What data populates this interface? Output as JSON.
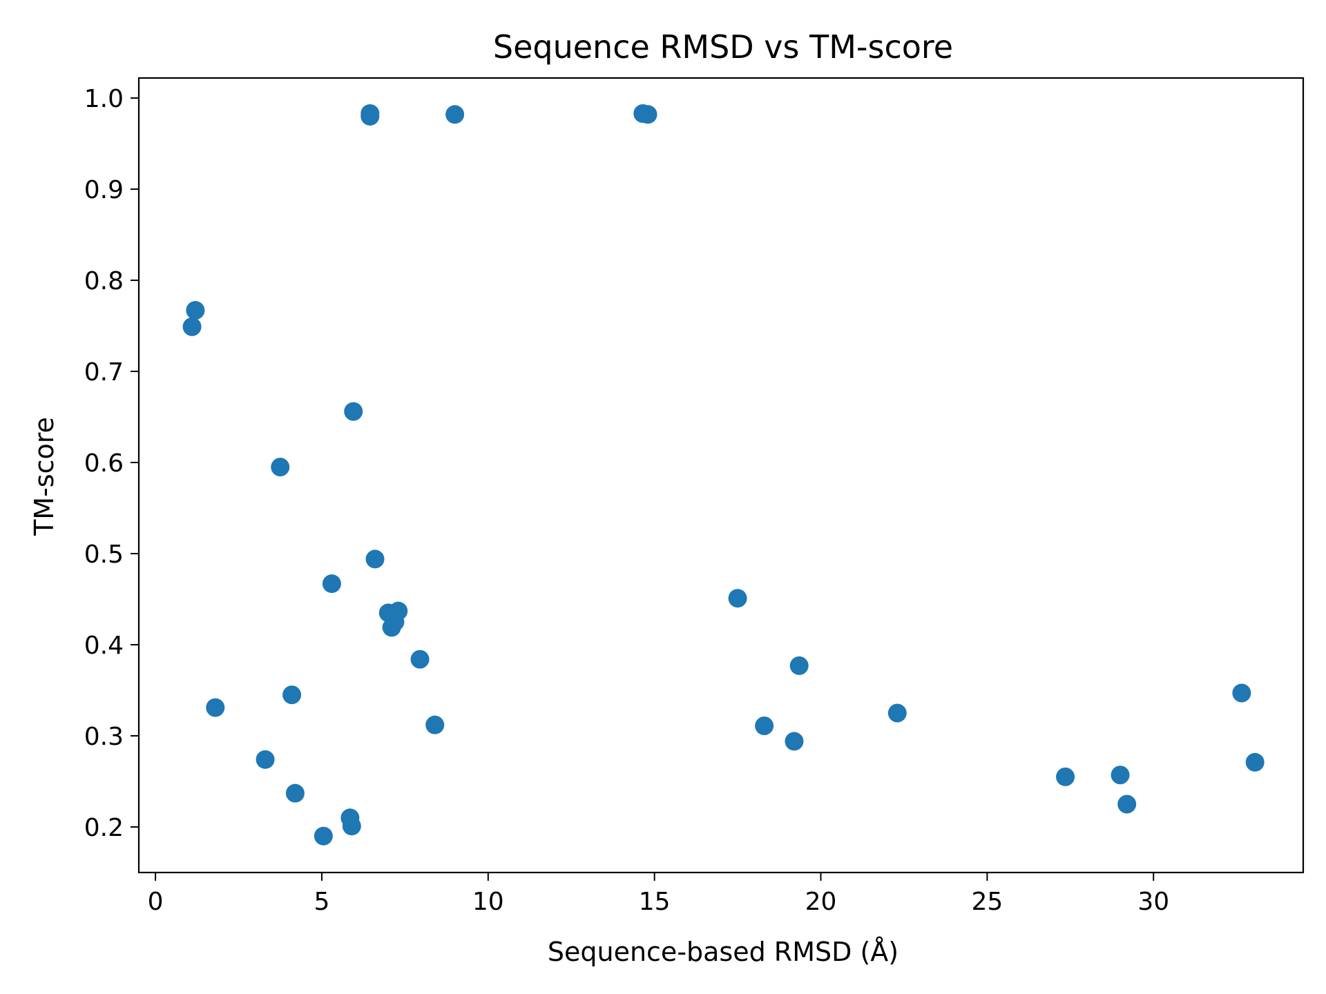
{
  "chart_data": {
    "type": "scatter",
    "title": "Sequence RMSD vs TM-score",
    "xlabel": "Sequence-based RMSD (Å)",
    "ylabel": "TM-score",
    "xlim": [
      -0.5,
      34.5
    ],
    "ylim": [
      0.15,
      1.022
    ],
    "x_ticks": [
      0,
      5,
      10,
      15,
      20,
      25,
      30
    ],
    "x_tick_labels": [
      "0",
      "5",
      "10",
      "15",
      "20",
      "25",
      "30"
    ],
    "y_ticks": [
      0.2,
      0.3,
      0.4,
      0.5,
      0.6,
      0.7,
      0.8,
      0.9,
      1.0
    ],
    "y_tick_labels": [
      "0.2",
      "0.3",
      "0.4",
      "0.5",
      "0.6",
      "0.7",
      "0.8",
      "0.9",
      "1.0"
    ],
    "grid": false,
    "legend": "none",
    "marker_color": "#1f77b4",
    "series": [
      {
        "points": [
          {
            "x": 1.1,
            "y": 0.749
          },
          {
            "x": 1.2,
            "y": 0.767
          },
          {
            "x": 1.8,
            "y": 0.331
          },
          {
            "x": 3.3,
            "y": 0.274
          },
          {
            "x": 3.75,
            "y": 0.595
          },
          {
            "x": 4.1,
            "y": 0.345
          },
          {
            "x": 4.2,
            "y": 0.237
          },
          {
            "x": 5.05,
            "y": 0.19
          },
          {
            "x": 5.3,
            "y": 0.467
          },
          {
            "x": 5.85,
            "y": 0.21
          },
          {
            "x": 5.9,
            "y": 0.201
          },
          {
            "x": 5.95,
            "y": 0.656
          },
          {
            "x": 6.45,
            "y": 0.983
          },
          {
            "x": 6.45,
            "y": 0.98
          },
          {
            "x": 6.6,
            "y": 0.494
          },
          {
            "x": 7.0,
            "y": 0.435
          },
          {
            "x": 7.1,
            "y": 0.419
          },
          {
            "x": 7.2,
            "y": 0.425
          },
          {
            "x": 7.3,
            "y": 0.437
          },
          {
            "x": 7.95,
            "y": 0.384
          },
          {
            "x": 8.4,
            "y": 0.312
          },
          {
            "x": 9.0,
            "y": 0.982
          },
          {
            "x": 14.65,
            "y": 0.983
          },
          {
            "x": 14.8,
            "y": 0.982
          },
          {
            "x": 17.5,
            "y": 0.451
          },
          {
            "x": 18.3,
            "y": 0.311
          },
          {
            "x": 19.2,
            "y": 0.294
          },
          {
            "x": 19.35,
            "y": 0.377
          },
          {
            "x": 22.3,
            "y": 0.325
          },
          {
            "x": 27.35,
            "y": 0.255
          },
          {
            "x": 29.0,
            "y": 0.257
          },
          {
            "x": 29.2,
            "y": 0.225
          },
          {
            "x": 32.65,
            "y": 0.347
          },
          {
            "x": 33.05,
            "y": 0.271
          }
        ]
      }
    ]
  }
}
